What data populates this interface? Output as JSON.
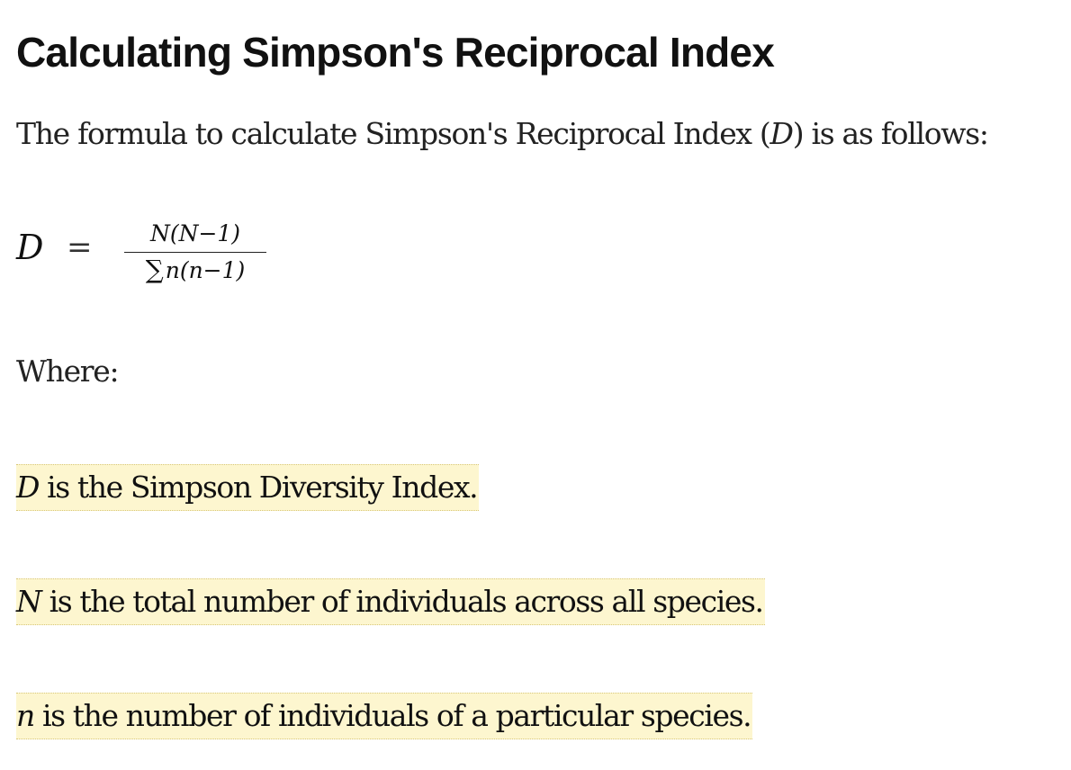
{
  "heading": "Calculating Simpson's Reciprocal Index",
  "intro": {
    "before": "The formula to calculate Simpson's Reciprocal Index (",
    "symbol": "D",
    "after": ") is as follows:"
  },
  "formula": {
    "lhs": "D",
    "equals": "=",
    "numerator": "N(N−1)",
    "sigma": "∑",
    "denominator": "n(n−1)"
  },
  "where_label": "Where:",
  "definitions": [
    {
      "symbol": "D",
      "text": " is the Simpson Diversity Index."
    },
    {
      "symbol": "N",
      "text": " is the total number of individuals across all species."
    },
    {
      "symbol": "n",
      "text": " is the number of individuals of a particular species."
    }
  ],
  "colors": {
    "highlight": "#fdf6cf",
    "highlight_border": "#d8c77a",
    "text": "#111111"
  }
}
